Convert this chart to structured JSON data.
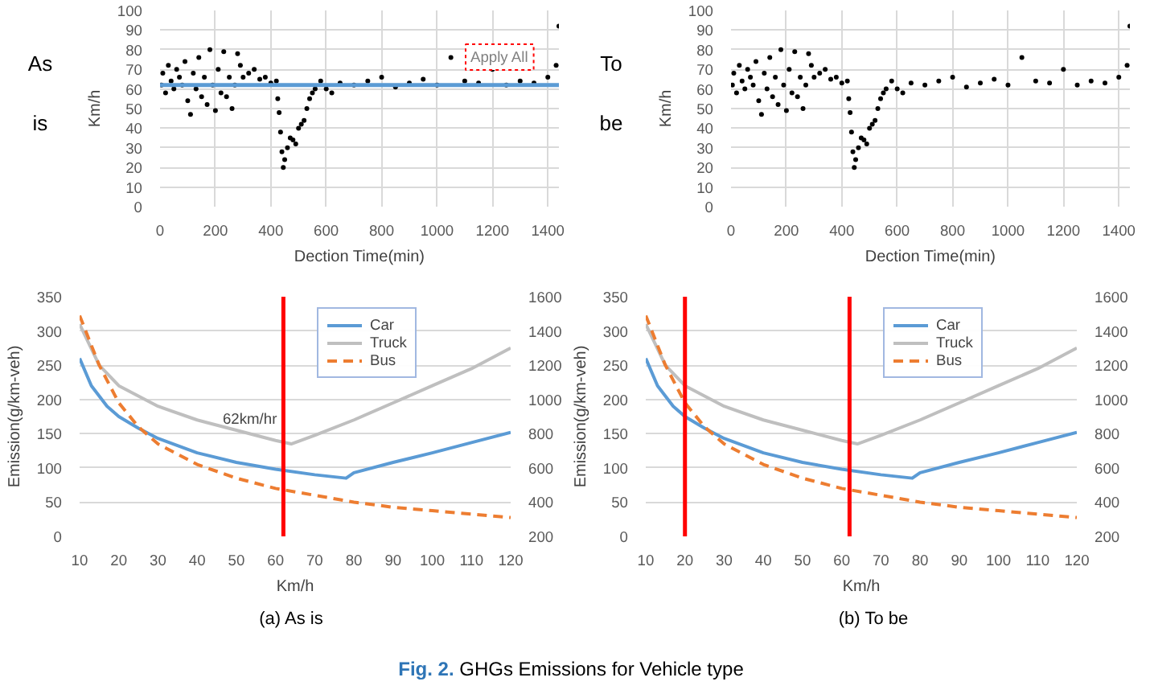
{
  "chart_data": [
    {
      "type": "scatter",
      "xlabel": "Dection Time(min)",
      "ylabel": "Km/h",
      "xlim": [
        0,
        1440
      ],
      "ylim": [
        0,
        100
      ],
      "xticks": [
        0,
        200,
        400,
        600,
        800,
        1000,
        1200,
        1400
      ],
      "yticks": [
        0,
        10,
        20,
        30,
        40,
        50,
        60,
        70,
        80,
        90,
        100
      ],
      "grid": true,
      "marker": "circle",
      "series": [
        {
          "color": "#000000",
          "x": [
            5,
            10,
            20,
            30,
            40,
            50,
            60,
            70,
            80,
            90,
            100,
            110,
            120,
            130,
            140,
            150,
            160,
            170,
            180,
            190,
            200,
            210,
            220,
            230,
            240,
            250,
            260,
            270,
            280,
            290,
            300,
            320,
            340,
            360,
            380,
            400,
            420,
            425,
            430,
            435,
            440,
            445,
            450,
            460,
            470,
            480,
            490,
            500,
            510,
            520,
            530,
            540,
            550,
            560,
            580,
            600,
            620,
            650,
            700,
            750,
            800,
            850,
            900,
            950,
            1000,
            1050,
            1100,
            1150,
            1200,
            1250,
            1300,
            1350,
            1400,
            1430,
            1440
          ],
          "values": [
            62,
            68,
            58,
            72,
            64,
            60,
            70,
            66,
            62,
            74,
            54,
            47,
            68,
            60,
            76,
            56,
            66,
            52,
            80,
            62,
            49,
            70,
            58,
            79,
            56,
            66,
            50,
            62,
            78,
            72,
            66,
            68,
            70,
            65,
            66,
            63,
            64,
            55,
            48,
            38,
            28,
            20,
            24,
            30,
            35,
            34,
            32,
            40,
            42,
            44,
            50,
            55,
            58,
            60,
            64,
            60,
            58,
            63,
            62,
            64,
            66,
            61,
            63,
            65,
            62,
            76,
            64,
            63,
            70,
            62,
            64,
            63,
            66,
            72,
            92
          ]
        }
      ],
      "ref_lines": [
        {
          "axis": "y",
          "value": 62,
          "color": "#5b9bd5"
        }
      ],
      "annotations": [
        "As is",
        "Apply All"
      ]
    },
    {
      "type": "scatter",
      "xlabel": "Dection Time(min)",
      "ylabel": "Km/h",
      "xlim": [
        0,
        1440
      ],
      "ylim": [
        0,
        100
      ],
      "xticks": [
        0,
        200,
        400,
        600,
        800,
        1000,
        1200,
        1400
      ],
      "yticks": [
        0,
        10,
        20,
        30,
        40,
        50,
        60,
        70,
        80,
        90,
        100
      ],
      "grid": true,
      "marker": "circle",
      "series": [
        {
          "color": "#000000",
          "x": [
            5,
            10,
            20,
            30,
            40,
            50,
            60,
            70,
            80,
            90,
            100,
            110,
            120,
            130,
            140,
            150,
            160,
            170,
            180,
            190,
            200,
            210,
            220,
            230,
            240,
            250,
            260,
            270,
            280,
            290,
            300,
            320,
            340,
            360,
            380,
            400,
            420,
            425,
            430,
            435,
            440,
            445,
            450,
            460,
            470,
            480,
            490,
            500,
            510,
            520,
            530,
            540,
            550,
            560,
            580,
            600,
            620,
            650,
            700,
            750,
            800,
            850,
            900,
            950,
            1000,
            1050,
            1100,
            1150,
            1200,
            1250,
            1300,
            1350,
            1400,
            1430,
            1440
          ],
          "values": [
            62,
            68,
            58,
            72,
            64,
            60,
            70,
            66,
            62,
            74,
            54,
            47,
            68,
            60,
            76,
            56,
            66,
            52,
            80,
            62,
            49,
            70,
            58,
            79,
            56,
            66,
            50,
            62,
            78,
            72,
            66,
            68,
            70,
            65,
            66,
            63,
            64,
            55,
            48,
            38,
            28,
            20,
            24,
            30,
            35,
            34,
            32,
            40,
            42,
            44,
            50,
            55,
            58,
            60,
            64,
            60,
            58,
            63,
            62,
            64,
            66,
            61,
            63,
            65,
            62,
            76,
            64,
            63,
            70,
            62,
            64,
            63,
            66,
            72,
            92
          ]
        }
      ],
      "annotations": [
        "To be"
      ]
    },
    {
      "type": "line",
      "xlabel": "Km/h",
      "ylabel": "Emission(g/km-veh)",
      "xlim": [
        10,
        120
      ],
      "ylim": [
        0,
        350
      ],
      "y2lim": [
        200,
        1600
      ],
      "xticks": [
        10,
        20,
        30,
        40,
        50,
        60,
        70,
        80,
        90,
        100,
        110,
        120
      ],
      "yticks": [
        0,
        50,
        100,
        150,
        200,
        250,
        300,
        350
      ],
      "y2ticks": [
        200,
        400,
        600,
        800,
        1000,
        1200,
        1400,
        1600
      ],
      "grid": "y",
      "legend": "top right",
      "series": [
        {
          "name": "Car",
          "color": "#5b9bd5",
          "x": [
            10,
            13,
            17,
            20,
            25,
            30,
            40,
            50,
            60,
            70,
            78,
            80,
            90,
            100,
            110,
            120
          ],
          "values": [
            260,
            220,
            190,
            175,
            158,
            143,
            122,
            108,
            98,
            90,
            85,
            93,
            108,
            122,
            137,
            152
          ]
        },
        {
          "name": "Truck",
          "color": "#bfbfbf",
          "axis": "y2",
          "x": [
            10,
            15,
            20,
            30,
            40,
            50,
            60,
            64,
            70,
            80,
            90,
            100,
            110,
            120
          ],
          "values": [
            1440,
            1200,
            1080,
            960,
            880,
            820,
            760,
            740,
            790,
            880,
            980,
            1080,
            1180,
            1300
          ]
        },
        {
          "name": "Bus",
          "color": "#ed7d31",
          "axis": "y2",
          "line_style": "dashed",
          "x": [
            10,
            15,
            20,
            25,
            30,
            40,
            50,
            60,
            70,
            80,
            90,
            100,
            110,
            120
          ],
          "values": [
            1490,
            1200,
            980,
            840,
            740,
            620,
            540,
            480,
            440,
            400,
            370,
            350,
            330,
            310
          ]
        }
      ],
      "ref_lines": [
        {
          "axis": "x",
          "value": 62,
          "color": "#ff0000"
        }
      ],
      "annotations": [
        {
          "text": "62km/hr",
          "x": 62,
          "y": 160
        },
        "(a) As is"
      ]
    },
    {
      "type": "line",
      "xlabel": "Km/h",
      "ylabel": "Emission(g/km-veh)",
      "xlim": [
        10,
        120
      ],
      "ylim": [
        0,
        350
      ],
      "y2lim": [
        200,
        1600
      ],
      "xticks": [
        10,
        20,
        30,
        40,
        50,
        60,
        70,
        80,
        90,
        100,
        110,
        120
      ],
      "yticks": [
        0,
        50,
        100,
        150,
        200,
        250,
        300,
        350
      ],
      "y2ticks": [
        200,
        400,
        600,
        800,
        1000,
        1200,
        1400,
        1600
      ],
      "grid": "y",
      "legend": "top right",
      "series": [
        {
          "name": "Car",
          "color": "#5b9bd5",
          "x": [
            10,
            13,
            17,
            20,
            25,
            30,
            40,
            50,
            60,
            70,
            78,
            80,
            90,
            100,
            110,
            120
          ],
          "values": [
            260,
            220,
            190,
            175,
            158,
            143,
            122,
            108,
            98,
            90,
            85,
            93,
            108,
            122,
            137,
            152
          ]
        },
        {
          "name": "Truck",
          "color": "#bfbfbf",
          "axis": "y2",
          "x": [
            10,
            15,
            20,
            30,
            40,
            50,
            60,
            64,
            70,
            80,
            90,
            100,
            110,
            120
          ],
          "values": [
            1440,
            1200,
            1080,
            960,
            880,
            820,
            760,
            740,
            790,
            880,
            980,
            1080,
            1180,
            1300
          ]
        },
        {
          "name": "Bus",
          "color": "#ed7d31",
          "axis": "y2",
          "line_style": "dashed",
          "x": [
            10,
            15,
            20,
            25,
            30,
            40,
            50,
            60,
            70,
            80,
            90,
            100,
            110,
            120
          ],
          "values": [
            1490,
            1200,
            980,
            840,
            740,
            620,
            540,
            480,
            440,
            400,
            370,
            350,
            330,
            310
          ]
        }
      ],
      "ref_lines": [
        {
          "axis": "x",
          "value": 20,
          "color": "#ff0000"
        },
        {
          "axis": "x",
          "value": 62,
          "color": "#ff0000"
        }
      ],
      "annotations": [
        "(b) To be",
        "Fig. 2. GHGs Emissions for Vehicle type"
      ]
    }
  ]
}
